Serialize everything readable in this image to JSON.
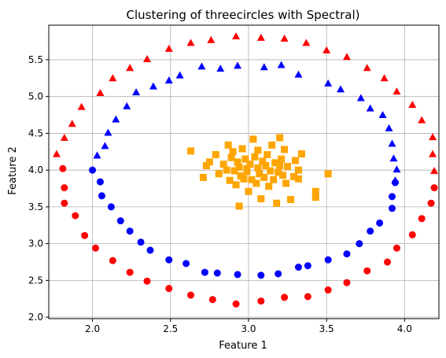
{
  "chart_data": {
    "type": "scatter",
    "title": "Clustering of threecircles with Spectral)",
    "xlabel": "Feature 1",
    "ylabel": "Feature 2",
    "xlim": [
      1.72,
      4.22
    ],
    "ylim": [
      1.98,
      5.97
    ],
    "xticks": [
      2.0,
      2.5,
      3.0,
      3.5,
      4.0
    ],
    "xtick_labels": [
      "2.0",
      "2.5",
      "3.0",
      "3.5",
      "4.0"
    ],
    "yticks": [
      2.0,
      2.5,
      3.0,
      3.5,
      4.0,
      4.5,
      5.0,
      5.5
    ],
    "ytick_labels": [
      "2.0",
      "2.5",
      "3.0",
      "3.5",
      "4.0",
      "4.5",
      "5.0",
      "5.5"
    ],
    "grid": true,
    "series": [
      {
        "marker": "triangle",
        "color": "#ff0000",
        "points": [
          [
            1.77,
            4.22
          ],
          [
            1.82,
            4.44
          ],
          [
            1.87,
            4.63
          ],
          [
            1.93,
            4.86
          ],
          [
            2.05,
            5.05
          ],
          [
            2.13,
            5.25
          ],
          [
            2.24,
            5.39
          ],
          [
            2.35,
            5.51
          ],
          [
            2.49,
            5.65
          ],
          [
            2.63,
            5.73
          ],
          [
            2.76,
            5.77
          ],
          [
            2.92,
            5.82
          ],
          [
            3.08,
            5.8
          ],
          [
            3.23,
            5.79
          ],
          [
            3.37,
            5.73
          ],
          [
            3.5,
            5.63
          ],
          [
            3.63,
            5.54
          ],
          [
            3.76,
            5.39
          ],
          [
            3.87,
            5.25
          ],
          [
            3.95,
            5.07
          ],
          [
            4.05,
            4.89
          ],
          [
            4.11,
            4.68
          ],
          [
            4.18,
            4.45
          ],
          [
            4.18,
            4.22
          ],
          [
            4.19,
            3.99
          ]
        ]
      },
      {
        "marker": "circle",
        "color": "#ff0000",
        "points": [
          [
            1.81,
            4.02
          ],
          [
            1.82,
            3.76
          ],
          [
            1.82,
            3.55
          ],
          [
            1.89,
            3.38
          ],
          [
            1.95,
            3.11
          ],
          [
            2.02,
            2.94
          ],
          [
            2.13,
            2.77
          ],
          [
            2.24,
            2.61
          ],
          [
            2.35,
            2.49
          ],
          [
            2.49,
            2.39
          ],
          [
            2.63,
            2.3
          ],
          [
            2.77,
            2.24
          ],
          [
            2.92,
            2.18
          ],
          [
            3.08,
            2.22
          ],
          [
            3.23,
            2.27
          ],
          [
            3.38,
            2.28
          ],
          [
            3.51,
            2.37
          ],
          [
            3.63,
            2.47
          ],
          [
            3.76,
            2.63
          ],
          [
            3.89,
            2.75
          ],
          [
            3.95,
            2.94
          ],
          [
            4.05,
            3.12
          ],
          [
            4.11,
            3.34
          ],
          [
            4.17,
            3.55
          ],
          [
            4.19,
            3.76
          ]
        ]
      },
      {
        "marker": "triangle",
        "color": "#0000ff",
        "points": [
          [
            2.03,
            4.2
          ],
          [
            2.08,
            4.33
          ],
          [
            2.1,
            4.51
          ],
          [
            2.15,
            4.69
          ],
          [
            2.22,
            4.87
          ],
          [
            2.28,
            5.06
          ],
          [
            2.39,
            5.14
          ],
          [
            2.49,
            5.22
          ],
          [
            2.56,
            5.29
          ],
          [
            2.7,
            5.41
          ],
          [
            2.82,
            5.38
          ],
          [
            2.93,
            5.42
          ],
          [
            3.1,
            5.4
          ],
          [
            3.21,
            5.43
          ],
          [
            3.32,
            5.3
          ],
          [
            3.51,
            5.18
          ],
          [
            3.59,
            5.1
          ],
          [
            3.72,
            4.98
          ],
          [
            3.78,
            4.84
          ],
          [
            3.86,
            4.75
          ],
          [
            3.9,
            4.57
          ],
          [
            3.92,
            4.36
          ],
          [
            3.93,
            4.16
          ],
          [
            3.95,
            4.01
          ],
          [
            3.94,
            3.86
          ]
        ]
      },
      {
        "marker": "circle",
        "color": "#0000ff",
        "points": [
          [
            2.0,
            4.0
          ],
          [
            2.05,
            3.84
          ],
          [
            2.06,
            3.65
          ],
          [
            2.12,
            3.5
          ],
          [
            2.18,
            3.31
          ],
          [
            2.24,
            3.17
          ],
          [
            2.31,
            3.02
          ],
          [
            2.37,
            2.91
          ],
          [
            2.49,
            2.78
          ],
          [
            2.6,
            2.73
          ],
          [
            2.72,
            2.61
          ],
          [
            2.8,
            2.6
          ],
          [
            2.93,
            2.58
          ],
          [
            3.08,
            2.57
          ],
          [
            3.19,
            2.59
          ],
          [
            3.32,
            2.68
          ],
          [
            3.38,
            2.7
          ],
          [
            3.51,
            2.78
          ],
          [
            3.63,
            2.86
          ],
          [
            3.71,
            3.0
          ],
          [
            3.78,
            3.17
          ],
          [
            3.84,
            3.28
          ],
          [
            3.92,
            3.48
          ],
          [
            3.92,
            3.64
          ],
          [
            3.94,
            3.83
          ]
        ]
      },
      {
        "marker": "square",
        "color": "#ffa500",
        "points": [
          [
            2.63,
            4.26
          ],
          [
            2.71,
            3.9
          ],
          [
            2.73,
            4.06
          ],
          [
            2.75,
            4.11
          ],
          [
            2.79,
            4.21
          ],
          [
            2.81,
            3.95
          ],
          [
            2.84,
            4.08
          ],
          [
            2.86,
            4.0
          ],
          [
            2.87,
            4.34
          ],
          [
            2.88,
            3.86
          ],
          [
            2.89,
            4.17
          ],
          [
            2.9,
            4.25
          ],
          [
            2.91,
            3.99
          ],
          [
            2.92,
            3.8
          ],
          [
            2.93,
            4.11
          ],
          [
            2.94,
            3.51
          ],
          [
            2.94,
            4.04
          ],
          [
            2.95,
            3.92
          ],
          [
            2.96,
            4.29
          ],
          [
            2.97,
            3.88
          ],
          [
            2.98,
            4.15
          ],
          [
            2.99,
            3.98
          ],
          [
            3.0,
            3.71
          ],
          [
            3.01,
            4.08
          ],
          [
            3.02,
            3.87
          ],
          [
            3.03,
            4.42
          ],
          [
            3.04,
            4.18
          ],
          [
            3.05,
            3.82
          ],
          [
            3.06,
            4.03
          ],
          [
            3.06,
            4.27
          ],
          [
            3.07,
            3.95
          ],
          [
            3.08,
            3.61
          ],
          [
            3.09,
            4.12
          ],
          [
            3.1,
            3.9
          ],
          [
            3.11,
            4.06
          ],
          [
            3.12,
            4.21
          ],
          [
            3.13,
            3.78
          ],
          [
            3.14,
            3.99
          ],
          [
            3.15,
            4.34
          ],
          [
            3.16,
            3.87
          ],
          [
            3.17,
            4.1
          ],
          [
            3.18,
            3.55
          ],
          [
            3.19,
            3.97
          ],
          [
            3.2,
            4.44
          ],
          [
            3.21,
            4.15
          ],
          [
            3.22,
            3.93
          ],
          [
            3.23,
            4.28
          ],
          [
            3.24,
            3.82
          ],
          [
            3.25,
            4.05
          ],
          [
            3.27,
            3.6
          ],
          [
            3.29,
            3.91
          ],
          [
            3.3,
            4.13
          ],
          [
            3.32,
            3.88
          ],
          [
            3.34,
            4.22
          ],
          [
            3.43,
            3.63
          ],
          [
            3.43,
            3.71
          ],
          [
            3.51,
            3.95
          ],
          [
            3.32,
            4.0
          ],
          [
            3.2,
            4.06
          ],
          [
            2.99,
            4.02
          ]
        ]
      }
    ]
  }
}
